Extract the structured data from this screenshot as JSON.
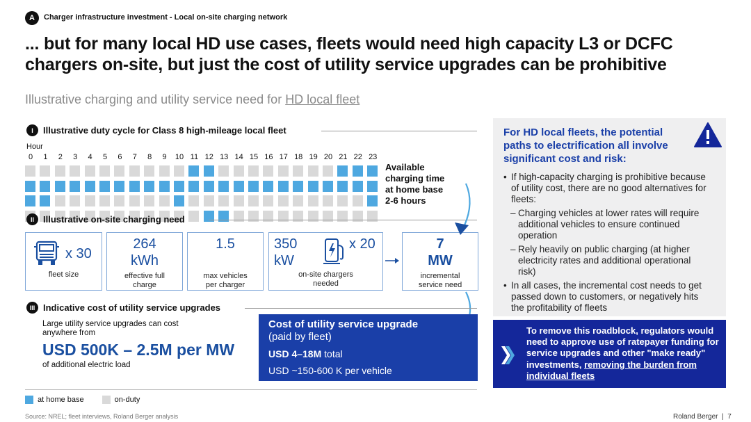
{
  "header": {
    "tag_letter": "A",
    "tag_label": "Charger infrastructure investment - Local on-site charging network",
    "headline": "... but for many local HD use cases, fleets would need high capacity L3 or DCFC chargers on-site, but just the cost of utility service upgrades can be prohibitive",
    "subtitle_prefix": "Illustrative charging and utility service need for ",
    "subtitle_link": "HD local fleet"
  },
  "section1": {
    "roman": "I",
    "title": "Illustrative duty cycle for Class 8 high-mileage local fleet",
    "hour_label": "Hour",
    "hours": [
      "0",
      "1",
      "2",
      "3",
      "4",
      "5",
      "6",
      "7",
      "8",
      "9",
      "10",
      "11",
      "12",
      "13",
      "14",
      "15",
      "16",
      "17",
      "18",
      "19",
      "20",
      "21",
      "22",
      "23"
    ],
    "rows": [
      [
        0,
        0,
        0,
        0,
        0,
        0,
        0,
        0,
        0,
        0,
        0,
        1,
        1,
        0,
        0,
        0,
        0,
        0,
        0,
        0,
        0,
        1,
        1,
        1
      ],
      [
        1,
        1,
        1,
        1,
        1,
        1,
        1,
        1,
        1,
        1,
        1,
        1,
        1,
        1,
        1,
        1,
        1,
        1,
        1,
        1,
        1,
        1,
        1,
        1
      ],
      [
        1,
        1,
        0,
        0,
        0,
        0,
        0,
        0,
        0,
        0,
        1,
        0,
        0,
        0,
        0,
        0,
        0,
        0,
        0,
        0,
        0,
        0,
        0,
        1
      ],
      [
        0,
        0,
        0,
        0,
        0,
        0,
        0,
        0,
        0,
        0,
        0,
        0,
        1,
        1,
        0,
        0,
        0,
        0,
        0,
        0,
        0,
        0,
        0,
        0
      ]
    ],
    "avail_lines": [
      "Available",
      "charging time",
      "at home base",
      "2-6 hours"
    ]
  },
  "section2": {
    "roman": "II",
    "title": "Illustrative on-site charging need",
    "fleet_mult": "x 30",
    "fleet_label": "fleet size",
    "kwh_line1": "264",
    "kwh_line2": "kWh",
    "kwh_label1": "effective full",
    "kwh_label2": "charge",
    "maxveh_value": "1.5",
    "maxveh_label1": "max vehicles",
    "maxveh_label2": "per charger",
    "kw_line1": "350",
    "kw_line2": "kW",
    "charger_mult": "x 20",
    "chargers_label1": "on-site chargers",
    "chargers_label2": "needed",
    "mw_line1": "7",
    "mw_line2": "MW",
    "mw_label1": "incremental",
    "mw_label2": "service need"
  },
  "section3": {
    "roman": "III",
    "title": "Indicative cost of utility service upgrades",
    "line1a": "Large utility service upgrades can cost",
    "line1b": "anywhere from",
    "big": "USD 500K – 2.5M per MW",
    "line3": "of additional electric load",
    "box_title1": "Cost of utility service upgrade",
    "box_title2": "(paid by fleet)",
    "box_total_bold": "USD 4–18M",
    "box_total_rest": " total",
    "box_per_vehicle": "USD ~150-600 K per vehicle"
  },
  "right_panel": {
    "title": "For HD local fleets, the potential paths to electrification all involve significant cost and risk:",
    "bullet1": "If high-capacity charging is prohibitive because of utility cost, there are no good alternatives for fleets:",
    "sub1": "Charging vehicles at lower rates will require additional vehicles to ensure continued operation",
    "sub2": "Rely heavily on public charging (at higher electricity rates and additional operational risk)",
    "bullet2": "In all cases, the incremental cost needs to get passed down to customers, or negatively hits the profitability of fleets",
    "callout_plain": "To remove this roadblock, regulators would need to approve use of ratepayer funding for service upgrades and other \"make ready\" investments, ",
    "callout_underlined": "removing the burden from individual fleets"
  },
  "legend": {
    "home": "at home base",
    "duty": "on-duty"
  },
  "footer": {
    "source": "Source: NREL; fleet interviews, Roland Berger analysis",
    "brand": "Roland Berger",
    "sep": "|",
    "page": "7"
  },
  "colors": {
    "home_base": "#4ea8e0",
    "on_duty": "#d9d9d9",
    "accent": "#1a4fa0",
    "navy": "#14279a"
  }
}
